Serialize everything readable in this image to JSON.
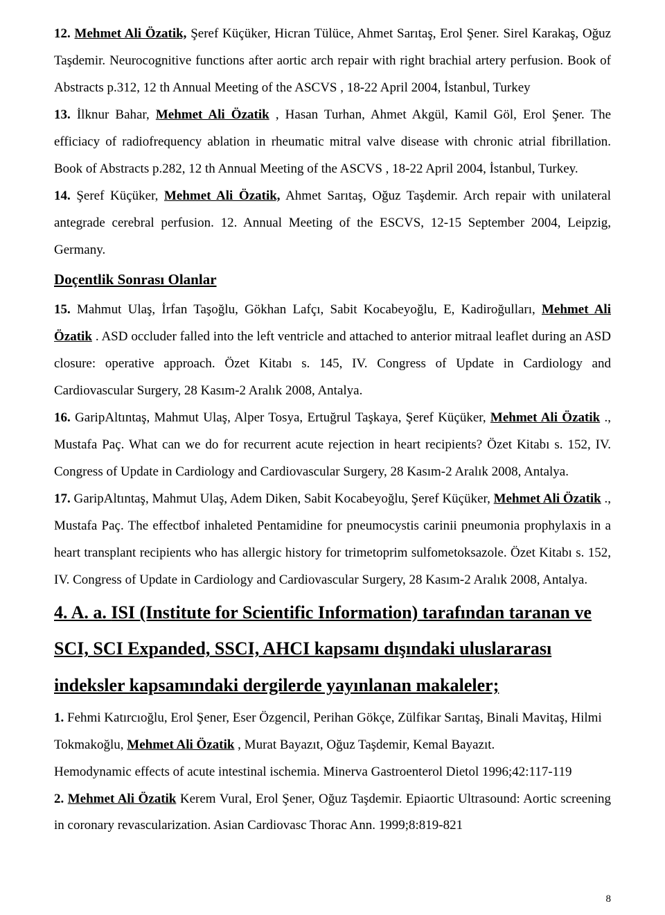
{
  "entry12": {
    "num": "12.",
    "authorHighlighted": "Mehmet Ali Özatik,",
    "authorsRest": " Şeref Küçüker, Hicran Tülüce, Ahmet Sarıtaş, Erol Şener. Sirel Karakaş, Oğuz Taşdemir. ",
    "title": "Neurocognitive functions after aortic arch repair with right brachial artery perfusion. ",
    "rest": "Book of Abstracts p.312, 12 th Annual Meeting of the ASCVS , 18-22 April 2004, İstanbul, Turkey"
  },
  "entry13": {
    "num": "13.",
    "authorsPre": " İlknur  Bahar, ",
    "authorHighlighted": "Mehmet Ali Özatik",
    "authorsPost": ", Hasan Turhan, Ahmet Akgül, Kamil Göl, Erol Şener. The efficiacy of radiofrequency ablation in rheumatic mitral valve disease with chronic atrial fibrillation. ",
    "rest": "Book of Abstracts p.282, 12 th Annual Meeting of the ASCVS , 18-22 April 2004, İstanbul, Turkey."
  },
  "entry14": {
    "num": "14.",
    "authorsPre": " Şeref Küçüker, ",
    "authorHighlighted": "Mehmet Ali Özatik,",
    "authorsPost": " Ahmet Sarıtaş, Oğuz Taşdemir. Arch repair with unilateral antegrade cerebral perfusion. 12. Annual Meeting of the ESCVS,  12-15 September 2004, Leipzig, Germany."
  },
  "headingSub": "Doçentlik Sonrası Olanlar",
  "entry15": {
    "num": "15.",
    "authorsPre": "  Mahmut Ulaş, İrfan Taşoğlu, Gökhan Lafçı, Sabit Kocabeyoğlu, E, Kadiroğulları, ",
    "authorHighlighted": "Mehmet Ali Özatik",
    "body": ". ASD occluder falled into the left ventricle and attached to anterior mitraal leaflet during an ASD closure: operative approach. Özet Kitabı s. 145, IV. Congress of Update in Cardiology and Cardiovascular Surgery, 28 Kasım-2 Aralık 2008, Antalya."
  },
  "entry16": {
    "num": "16.",
    "authorsPre": " GaripAltıntaş, Mahmut Ulaş, Alper Tosya, Ertuğrul Taşkaya, Şeref Küçüker, ",
    "authorHighlighted": "Mehmet Ali Özatik",
    "body": "., Mustafa Paç. What can we do for recurrent acute rejection in heart recipients? Özet Kitabı s. 152, IV. Congress of Update in Cardiology and Cardiovascular Surgery, 28 Kasım-2 Aralık 2008, Antalya."
  },
  "entry17": {
    "num": "17.",
    "authorsPre": " GaripAltıntaş, Mahmut Ulaş, Adem Diken, Sabit Kocabeyoğlu, Şeref Küçüker, ",
    "authorHighlighted": "Mehmet Ali Özatik",
    "body": "., Mustafa Paç. The effectbof inhaleted Pentamidine for pneumocystis carinii pneumonia prophylaxis in a heart transplant recipients who has allergic history for trimetoprim sulfometoksazole. Özet Kitabı s. 152, IV. Congress of Update in Cardiology and Cardiovascular Surgery, 28 Kasım-2 Aralık 2008, Antalya."
  },
  "mainHeading": {
    "prefix": "4. A. a. ",
    "line1": "ISI (Institute for Scientific Information) tarafından taranan ve",
    "line2": "SCI, SCI Expanded, SSCI, AHCI kapsamı dışındaki uluslararası",
    "line3": "indeksler kapsamındaki dergilerde yayınlanan makaleler;"
  },
  "entryP1": {
    "num": "1.",
    "authorsPre": " Fehmi Katırcıoğlu, Erol Şener, Eser Özgencil, Perihan Gökçe, Zülfikar Sarıtaş, Binali Mavitaş, Hilmi Tokmakoğlu, ",
    "authorHighlighted": "Mehmet Ali Özatik",
    "authorsPost": ", Murat Bayazıt, Oğuz Taşdemir, Kemal Bayazıt.",
    "body": "Hemodynamic effects of acute intestinal ischemia. Minerva Gastroenterol Dietol 1996;42:117-119"
  },
  "entryP2": {
    "num": "2.",
    "authorHighlighted": "Mehmet Ali Özatik",
    "body": " Kerem Vural, Erol Şener, Oğuz Taşdemir. Epiaortic Ultrasound: Aortic screening in coronary revascularization.  Asian Cardiovasc Thorac Ann. 1999;8:819-821"
  },
  "pageNumber": "8"
}
